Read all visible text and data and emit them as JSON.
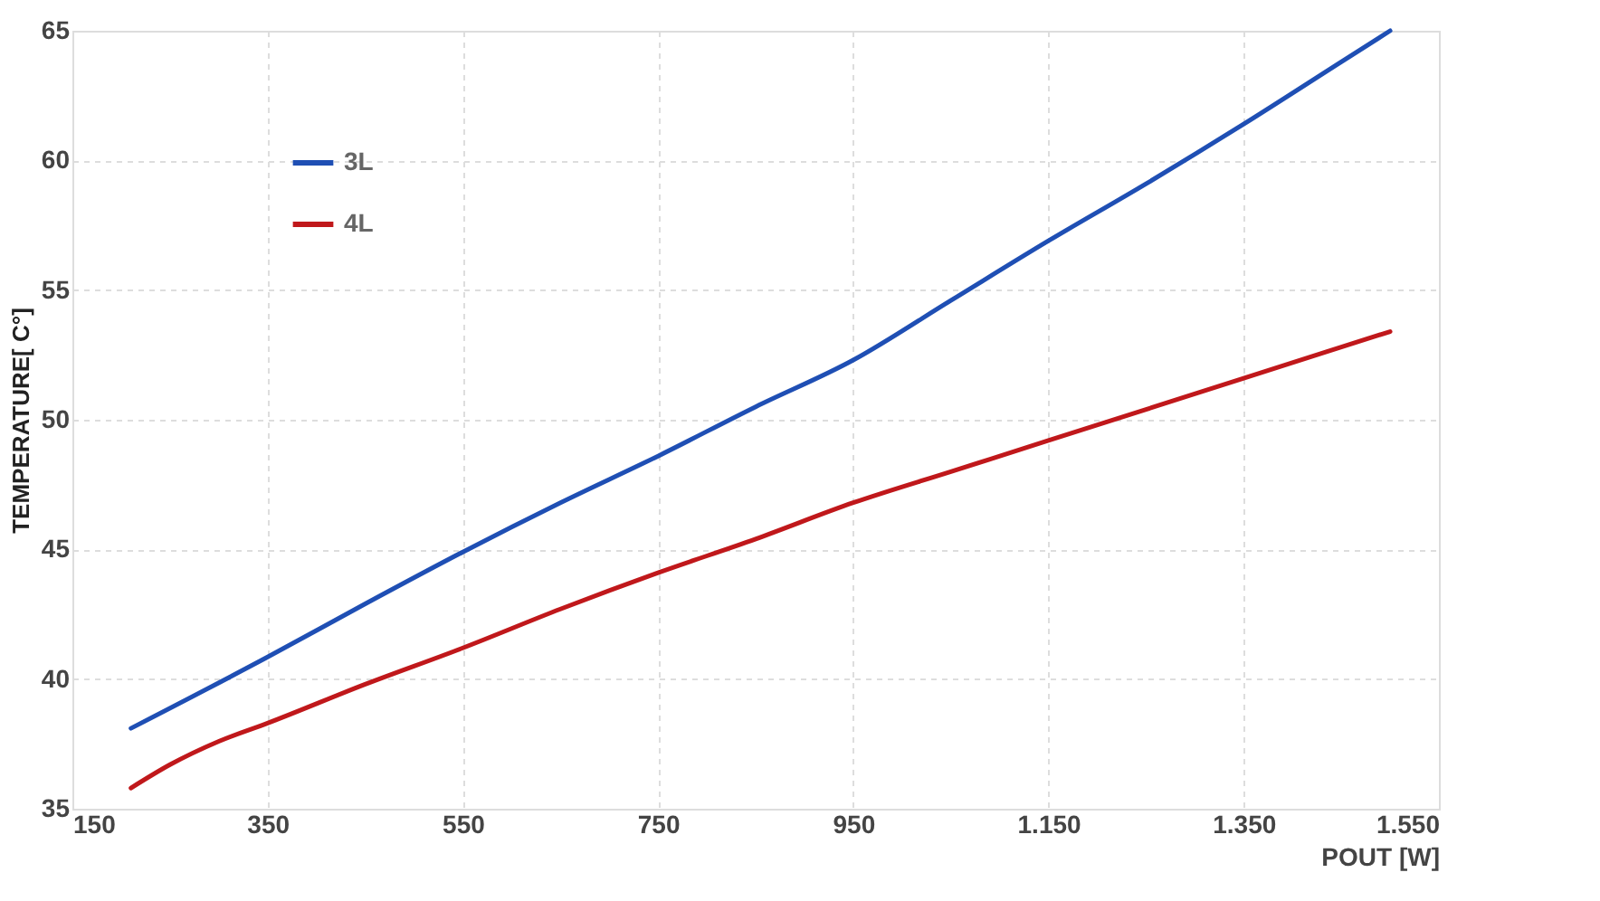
{
  "chart_data": {
    "type": "line",
    "xlabel": "POUT  [W]",
    "ylabel": "TEMPERATURE[ C°]",
    "xlim": [
      150,
      1550
    ],
    "xticks": [
      150,
      350,
      550,
      750,
      950,
      {
        "value": 1150,
        "label": "1.150"
      },
      {
        "value": 1350,
        "label": "1.350"
      },
      {
        "value": 1550,
        "label": "1.550"
      }
    ],
    "ylim": [
      35,
      65
    ],
    "yticks": [
      35,
      40,
      45,
      50,
      55,
      60,
      65
    ],
    "grid": true,
    "legend": "top left",
    "marker": "none",
    "line_style": "solid",
    "series": [
      {
        "name": "3L",
        "color": "#1f4fb4",
        "x": [
          210,
          350,
          450,
          550,
          650,
          750,
          850,
          950,
          1050,
          1150,
          1250,
          1350,
          1450,
          1500
        ],
        "values": [
          38.1,
          40.85,
          42.9,
          44.9,
          46.8,
          48.6,
          50.5,
          52.3,
          54.6,
          56.9,
          59.1,
          61.4,
          63.8,
          65.0
        ]
      },
      {
        "name": "4L",
        "color": "#c0181b",
        "x": [
          210,
          250,
          300,
          350,
          450,
          550,
          650,
          750,
          850,
          950,
          1050,
          1150,
          1250,
          1350,
          1450,
          1500
        ],
        "values": [
          35.8,
          36.7,
          37.6,
          38.3,
          39.8,
          41.2,
          42.7,
          44.1,
          45.4,
          46.8,
          48.0,
          49.2,
          50.4,
          51.6,
          52.8,
          53.4
        ]
      }
    ]
  }
}
